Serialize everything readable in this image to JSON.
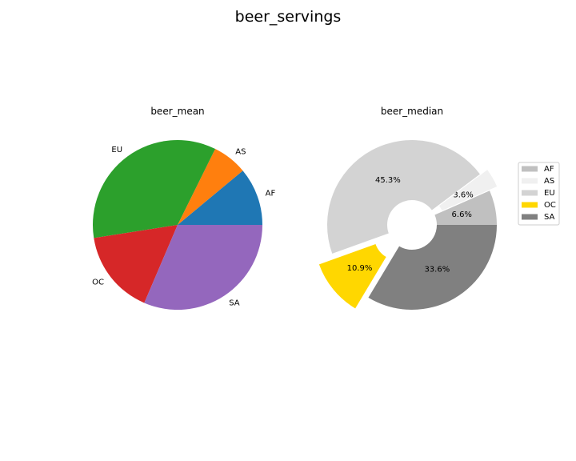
{
  "chart_data": [
    {
      "type": "pie",
      "suptitle": "beer_servings",
      "title": "beer_mean",
      "labels": [
        "AF",
        "AS",
        "EU",
        "OC",
        "SA"
      ],
      "values": [
        61.5,
        37.0,
        193.8,
        89.7,
        175.1
      ],
      "colors": [
        "#1f77b4",
        "#ff7f0e",
        "#2ca02c",
        "#d62728",
        "#9467bd"
      ],
      "start_angle": 0,
      "counterclockwise": true
    },
    {
      "type": "pie",
      "title": "beer_median",
      "labels": [
        "AF",
        "AS",
        "EU",
        "OC",
        "SA"
      ],
      "values": [
        6.6,
        3.6,
        45.3,
        10.9,
        33.6
      ],
      "autopct": [
        "6.6%",
        "3.6%",
        "45.3%",
        "10.9%",
        "33.6%"
      ],
      "explode": [
        0,
        0.1,
        0,
        0.2,
        0
      ],
      "donut_hole": true,
      "colors": [
        "#c0c0c0",
        "#f0f0f0",
        "#d3d3d3",
        "#ffd700",
        "#808080"
      ],
      "legend": {
        "placement": "right",
        "entries": [
          "AF",
          "AS",
          "EU",
          "OC",
          "SA"
        ]
      },
      "start_angle": 0,
      "counterclockwise": true
    }
  ]
}
